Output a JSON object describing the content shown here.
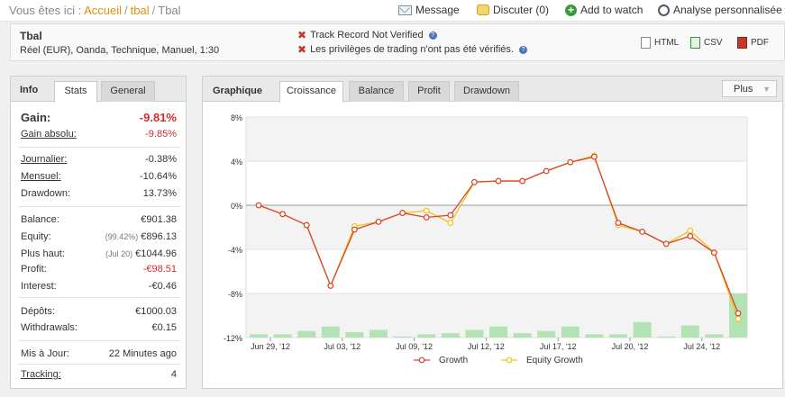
{
  "breadcrumb": {
    "prefix": "Vous êtes ici :",
    "items": [
      "Accueil",
      "tbal"
    ],
    "current": "Tbal",
    "separator": "/"
  },
  "top_actions": [
    {
      "label": "Message",
      "icon": "mail-icon"
    },
    {
      "label": "Discuter (0)",
      "icon": "chat-icon"
    },
    {
      "label": "Add to watch",
      "icon": "add-icon"
    },
    {
      "label": "Analyse personnalisée",
      "icon": "clock-icon"
    }
  ],
  "system": {
    "name": "Tbal",
    "description": "Réel (EUR), Oanda, Technique, Manuel, 1:30"
  },
  "warnings": [
    "Track Record Not Verified",
    "Les privilèges de trading n'ont pas été vérifiés."
  ],
  "export": [
    "HTML",
    "CSV",
    "PDF"
  ],
  "left_panel": {
    "title": "Info",
    "tabs": [
      "Stats",
      "General"
    ],
    "active_tab": "Stats",
    "gain": {
      "label": "Gain:",
      "value": "-9.81%"
    },
    "gain_absolu": {
      "label": "Gain absolu:",
      "value": "-9.85%"
    },
    "journalier": {
      "label": "Journalier:",
      "value": "-0.38%"
    },
    "mensuel": {
      "label": "Mensuel:",
      "value": "-10.64%"
    },
    "drawdown": {
      "label": "Drawdown:",
      "value": "13.73%"
    },
    "balance": {
      "label": "Balance:",
      "value": "€901.38"
    },
    "equity": {
      "label": "Equity:",
      "sub": "(99.42%)",
      "value": "€896.13"
    },
    "plus_haut": {
      "label": "Plus haut:",
      "sub": "(Jul 20)",
      "value": "€1044.96"
    },
    "profit": {
      "label": "Profit:",
      "value": "-€98.51"
    },
    "interest": {
      "label": "Interest:",
      "value": "-€0.46"
    },
    "depots": {
      "label": "Dépôts:",
      "value": "€1000.03"
    },
    "withdrawals": {
      "label": "Withdrawals:",
      "value": "€0.15"
    },
    "mis_a_jour": {
      "label": "Mis à Jour:",
      "value": "22 Minutes ago"
    },
    "tracking": {
      "label": "Tracking:",
      "value": "4"
    }
  },
  "right_panel": {
    "title": "Graphique",
    "tabs": [
      "Croissance",
      "Balance",
      "Profit",
      "Drawdown"
    ],
    "active_tab": "Croissance",
    "more_label": "Plus"
  },
  "colors": {
    "accent": "#d9930f",
    "negative": "#d62b2b",
    "growth_line": "#d9442b",
    "equity_line": "#f0c419",
    "bars": "#b3e2b5"
  },
  "chart_data": {
    "type": "line",
    "ylim": [
      -12,
      8
    ],
    "y_ticks": [
      "8%",
      "4%",
      "0%",
      "-4%",
      "-8%",
      "-12%"
    ],
    "x_tick_labels": [
      "Jun 29, '12",
      "Jul 03, '12",
      "Jul 09, '12",
      "Jul 12, '12",
      "Jul 17, '12",
      "Jul 20, '12",
      "Jul 24, '12"
    ],
    "x_tick_index": [
      0,
      3,
      6,
      9,
      12,
      15,
      18
    ],
    "grid": true,
    "legend_position": "bottom",
    "series": [
      {
        "name": "Growth",
        "values": [
          0.0,
          -0.8,
          -1.8,
          -7.3,
          -2.2,
          -1.5,
          -0.7,
          -1.1,
          -0.9,
          2.1,
          2.2,
          2.2,
          3.1,
          3.9,
          4.4,
          -1.6,
          -2.4,
          -3.5,
          -2.8,
          -4.3,
          -9.8
        ]
      },
      {
        "name": "Equity Growth",
        "values": [
          0.0,
          -0.8,
          -1.8,
          -7.3,
          -1.9,
          -1.5,
          -0.7,
          -0.5,
          -1.6,
          2.1,
          2.2,
          2.2,
          3.1,
          3.9,
          4.5,
          -1.8,
          -2.4,
          -3.5,
          -2.3,
          -4.3,
          -10.3
        ]
      }
    ],
    "bars": [
      0.3,
      0.3,
      0.6,
      1.0,
      0.5,
      0.7,
      0.1,
      0.3,
      0.4,
      0.7,
      1.0,
      0.4,
      0.6,
      1.0,
      0.3,
      0.3,
      1.4,
      0.1,
      1.1,
      0.3,
      4.0
    ]
  }
}
